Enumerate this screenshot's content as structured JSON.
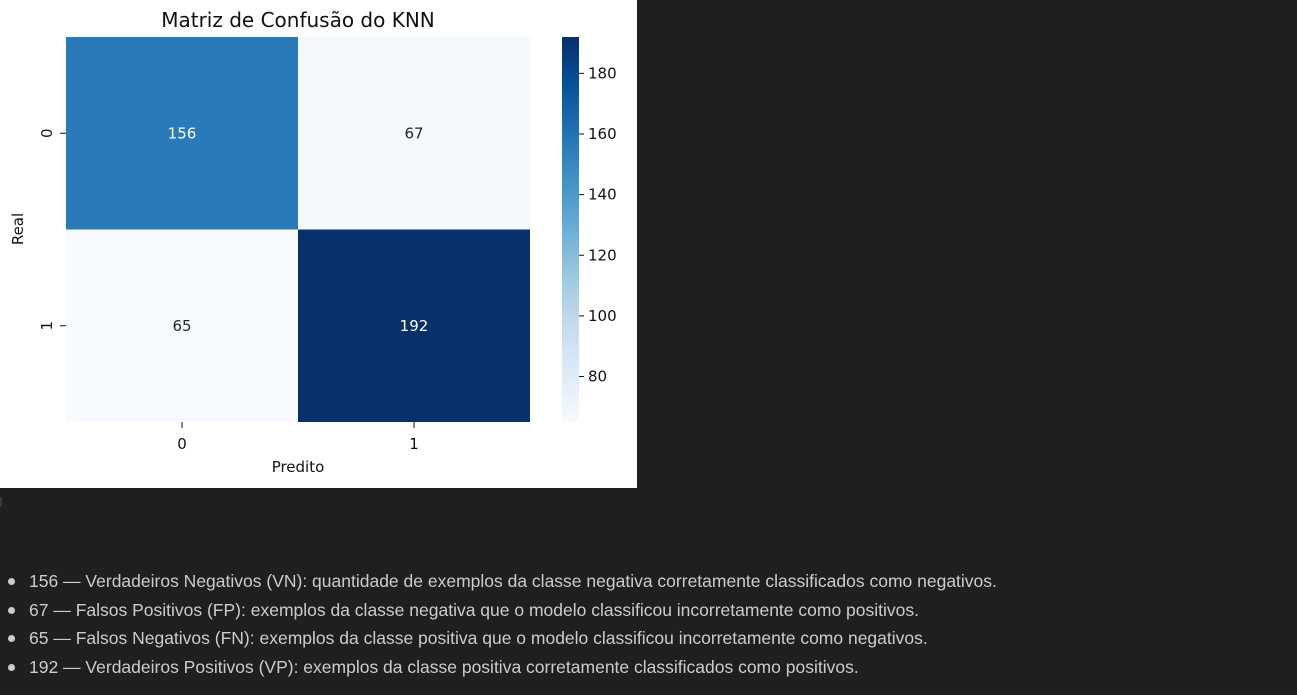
{
  "chart_data": {
    "type": "heatmap",
    "title": "Matriz de Confusão do KNN",
    "xlabel": "Predito",
    "ylabel": "Real",
    "x_categories": [
      "0",
      "1"
    ],
    "y_categories": [
      "0",
      "1"
    ],
    "values": [
      [
        156,
        67
      ],
      [
        65,
        192
      ]
    ],
    "colormap": "Blues",
    "colorbar": {
      "range": [
        65,
        192
      ],
      "ticks": [
        80,
        100,
        120,
        140,
        160,
        180
      ]
    },
    "grid": false
  },
  "notes": [
    "156 — Verdadeiros Negativos (VN): quantidade de exemplos da classe negativa corretamente classificados como negativos.",
    "67 — Falsos Positivos (FP): exemplos da classe negativa que o modelo classificou incorretamente como positivos.",
    "65 — Falsos Negativos (FN): exemplos da classe positiva que o modelo classificou incorretamente como negativos.",
    "192 — Verdadeiros Positivos (VP): exemplos da classe positiva corretamente classificados como positivos."
  ]
}
